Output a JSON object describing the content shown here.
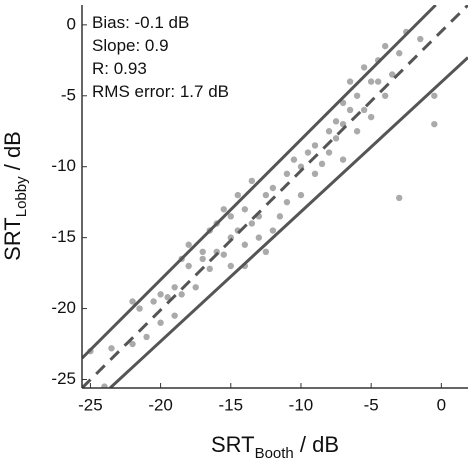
{
  "chart_data": {
    "type": "scatter",
    "annotations": [
      "Bias: -0.1 dB",
      "Slope: 0.9",
      "R: 0.93",
      "RMS error: 1.7 dB"
    ],
    "x_label": {
      "main": "SRT",
      "sub": "Booth",
      "rest": " / dB"
    },
    "y_label": {
      "main": "SRT",
      "sub": "Lobby",
      "rest": " / dB"
    },
    "xlim": [
      -25.6,
      1.9
    ],
    "ylim": [
      -25.6,
      1.4
    ],
    "xticks": [
      -25,
      -20,
      -15,
      -10,
      -5,
      0
    ],
    "yticks": [
      0,
      -5,
      -10,
      -15,
      -20,
      -25
    ],
    "color": "#aaaaaa",
    "x": [
      -25,
      -24,
      -23.5,
      -22,
      -22,
      -21.5,
      -21,
      -20.5,
      -20,
      -20,
      -19.5,
      -19,
      -19,
      -18.5,
      -18.5,
      -18,
      -18,
      -17.5,
      -17,
      -17,
      -16.5,
      -16.5,
      -16,
      -16,
      -15.5,
      -15.5,
      -15,
      -15,
      -15,
      -14.5,
      -14.5,
      -14,
      -14,
      -14,
      -13.5,
      -13.5,
      -13,
      -13,
      -12.5,
      -12.5,
      -12,
      -12,
      -11.5,
      -11,
      -11,
      -10.5,
      -10,
      -10,
      -9.5,
      -9,
      -9,
      -8.5,
      -8,
      -8,
      -7.5,
      -7.5,
      -7,
      -7,
      -7,
      -6.5,
      -6.5,
      -6,
      -6,
      -5.5,
      -5.5,
      -5,
      -5,
      -4.5,
      -4.5,
      -4,
      -4,
      -3.5,
      -3,
      -3,
      -2.5,
      -0.5,
      -0.5,
      -1.5
    ],
    "values": [
      -23,
      -25.5,
      -22.8,
      -22.5,
      -19.5,
      -20,
      -22,
      -19.5,
      -19,
      -21,
      -19.2,
      -18.5,
      -20.5,
      -16.5,
      -19,
      -17,
      -15.5,
      -18.5,
      -16,
      -16.5,
      -17.2,
      -14.5,
      -14,
      -16,
      -13,
      -16.2,
      -15,
      -13.5,
      -17,
      -14.5,
      -12,
      -13,
      -15.5,
      -17,
      -11,
      -14,
      -13.5,
      -15,
      -12,
      -16,
      -11.5,
      -14.5,
      -13.5,
      -10.5,
      -12.5,
      -9.5,
      -10,
      -12,
      -9,
      -8.5,
      -10.5,
      -9.8,
      -7.5,
      -9,
      -6.8,
      -8,
      -5.5,
      -7,
      -9.5,
      -6,
      -4,
      -7.5,
      -5,
      -3,
      -6,
      -4,
      -6.5,
      -2.5,
      -4,
      -5,
      -1.5,
      -3.5,
      -12.2,
      -2,
      -0.5,
      -7,
      -5,
      -1
    ],
    "lines": [
      {
        "style": "solid",
        "color": "#555555",
        "x": [
          -25.6,
          -0.4
        ],
        "values": [
          -23.5,
          1.4
        ]
      },
      {
        "style": "dashed",
        "color": "#555555",
        "x": [
          -25.6,
          1.9
        ],
        "values": [
          -25.6,
          1.4
        ]
      },
      {
        "style": "solid",
        "color": "#555555",
        "x": [
          -23.6,
          1.9
        ],
        "values": [
          -25.6,
          -2.3
        ]
      }
    ]
  }
}
